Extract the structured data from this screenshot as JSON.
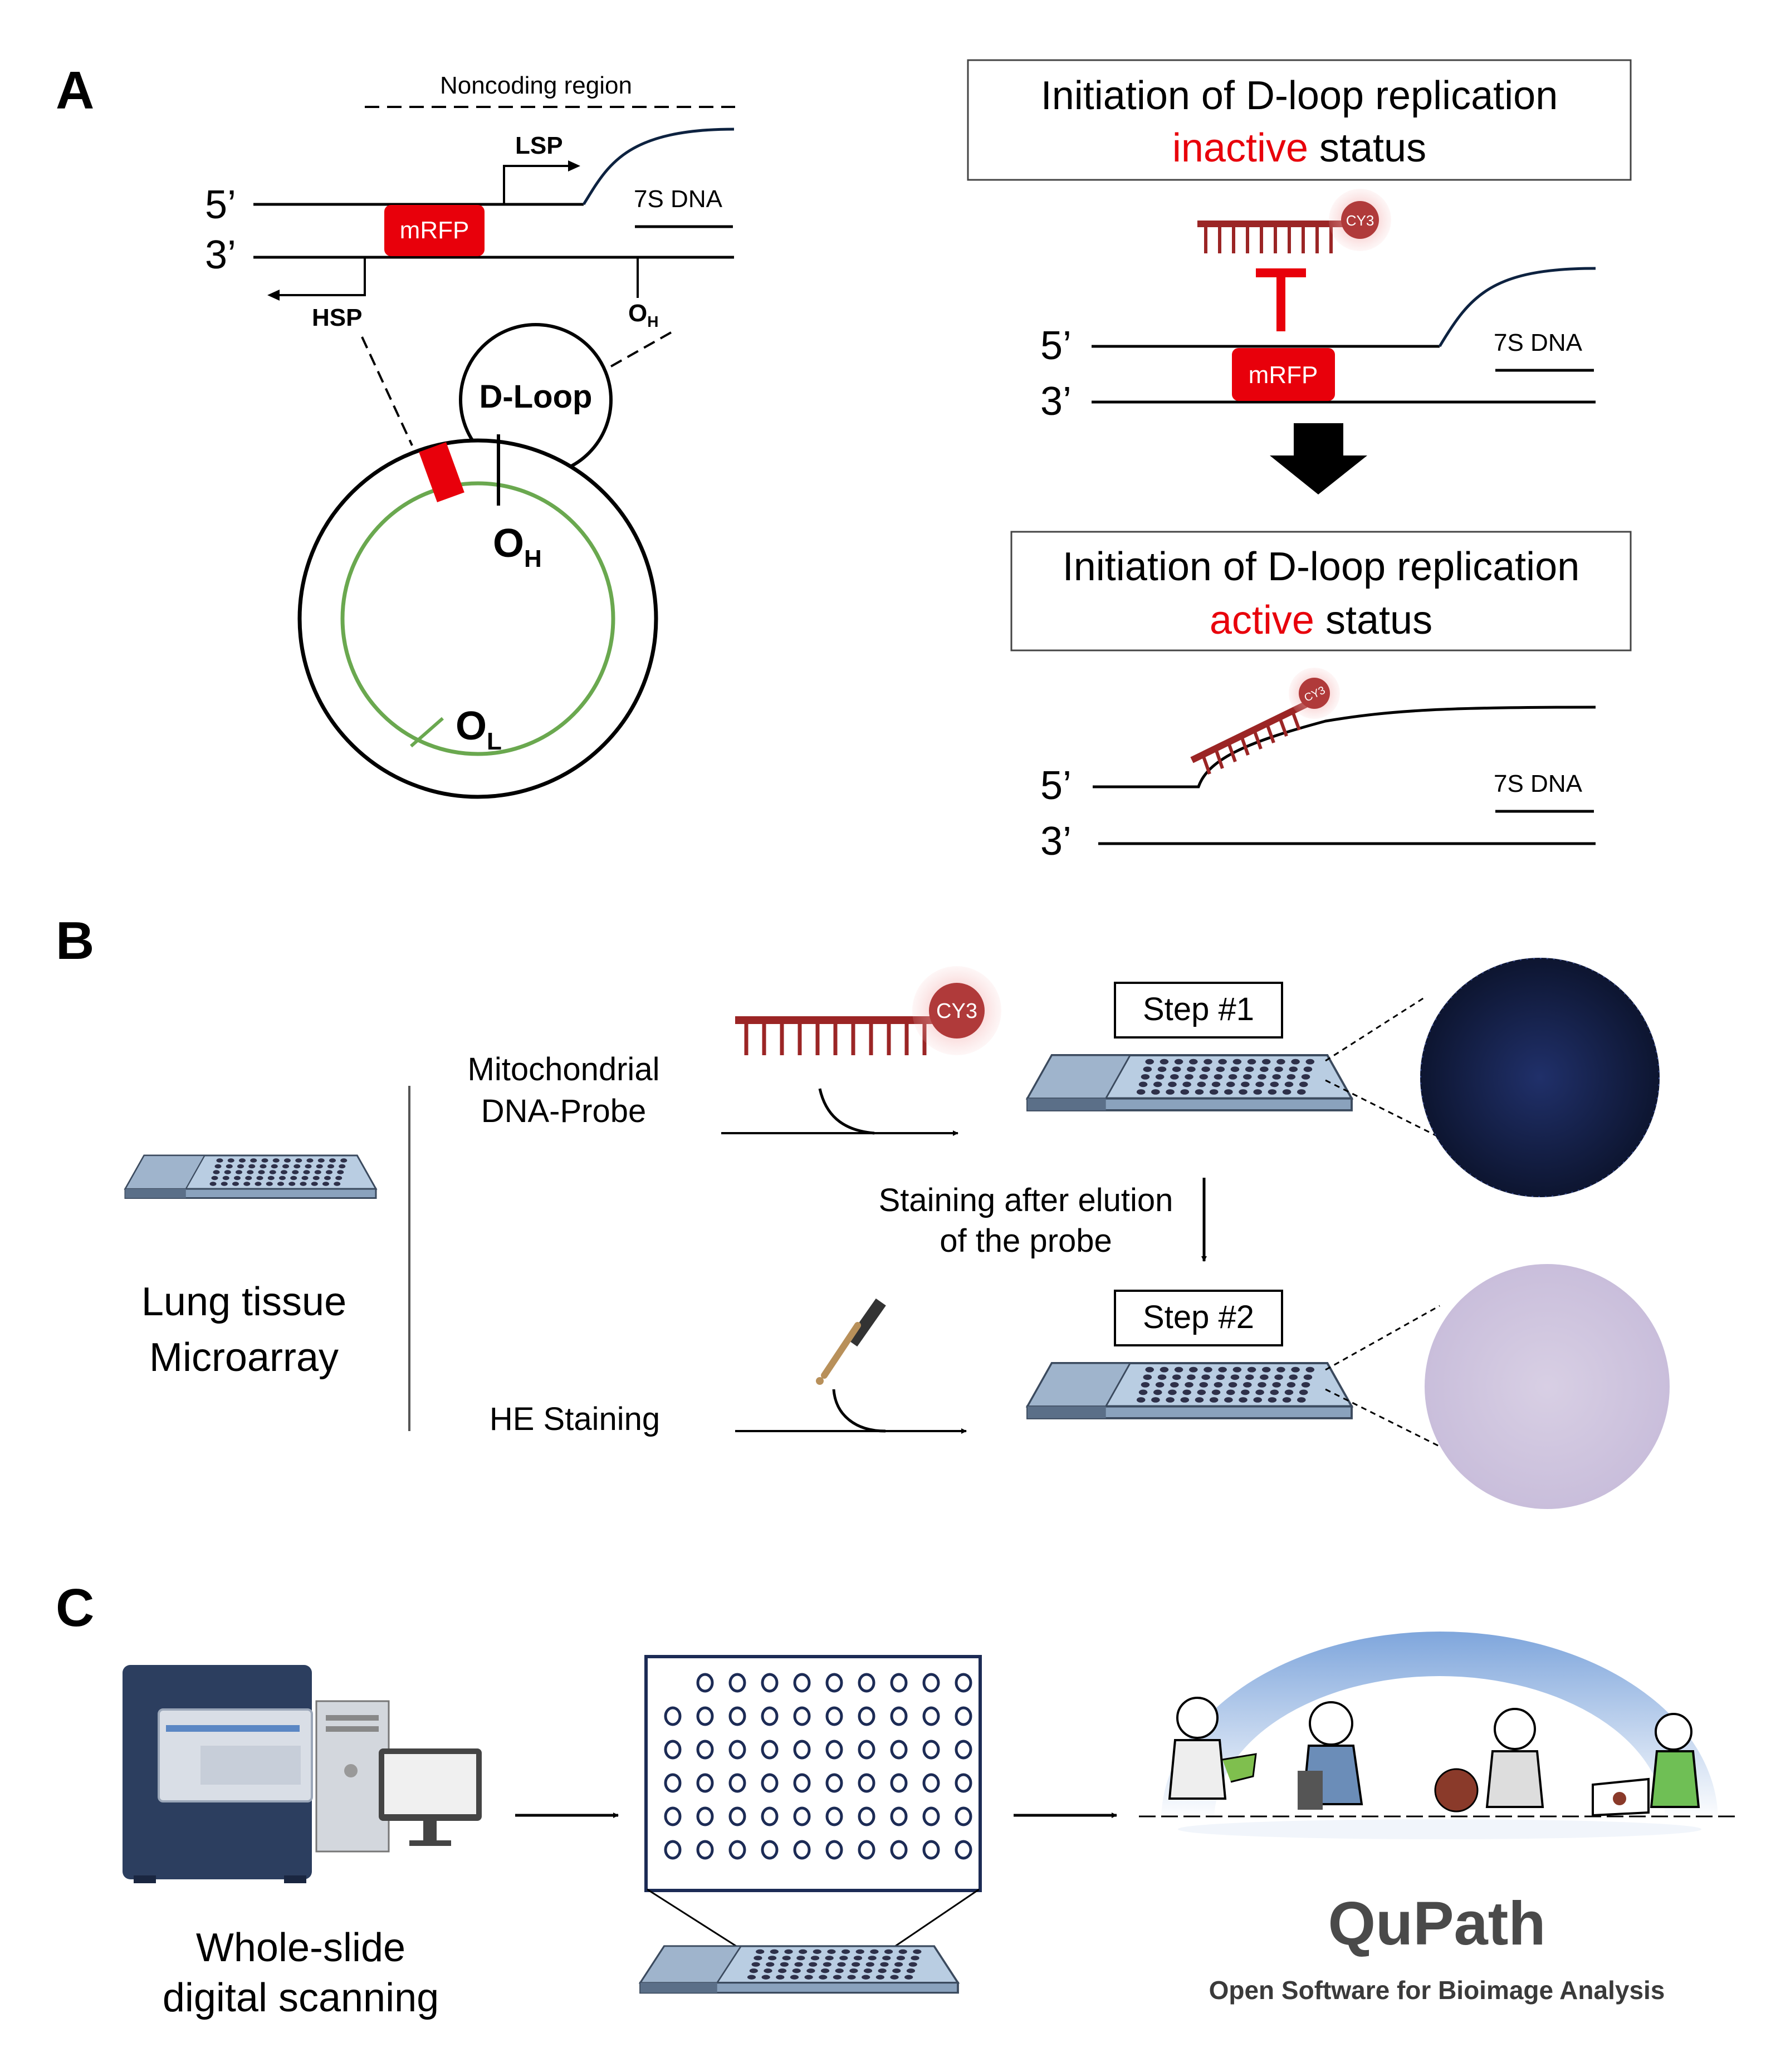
{
  "panels": {
    "a": "A",
    "b": "B",
    "c": "C"
  },
  "panelA": {
    "noncoding": "Noncoding region",
    "lsp": "LSP",
    "hsp": "HSP",
    "five": "5’",
    "three": "3’",
    "seven_s": "7S DNA",
    "mrfp": "mRFP",
    "oh_small_main": "O",
    "oh_small_sub": "H",
    "dloop": "D-Loop",
    "oh_main": "O",
    "oh_sub": "H",
    "ol_main": "O",
    "ol_sub": "L",
    "inactive_line1": "Initiation of D-loop replication",
    "inactive_word": "inactive",
    "inactive_rest": " status",
    "active_line1": "Initiation of D-loop replication",
    "active_word": "active",
    "active_rest": " status",
    "cy3": "CY3",
    "five_r1": "5’",
    "three_r1": "3’",
    "seven_s_r1": "7S DNA",
    "mrfp_r": "mRFP",
    "five_r2": "5’",
    "three_r2": "3’",
    "seven_s_r2": "7S DNA",
    "cy3_r2": "CY3"
  },
  "panelB": {
    "tissue_l1": "Lung tissue",
    "tissue_l2": "Microarray",
    "probe_l1": "Mitochondrial",
    "probe_l2": "DNA-Probe",
    "he": "HE Staining",
    "step1": "Step #1",
    "step2": "Step #2",
    "elution_l1": "Staining after elution",
    "elution_l2": "of the probe",
    "cy3": "CY3"
  },
  "panelC": {
    "scan_l1": "Whole-slide",
    "scan_l2": "digital scanning",
    "qupath": "QuPath",
    "qupath_sub": "Open Software for Bioimage Analysis"
  },
  "colors": {
    "red": "#e8000b",
    "probe": "#9b2525",
    "green": "#6aa84f",
    "navy": "#1c2b55",
    "slide": "#9fb4cc",
    "navy_curve": "#0d2240"
  }
}
